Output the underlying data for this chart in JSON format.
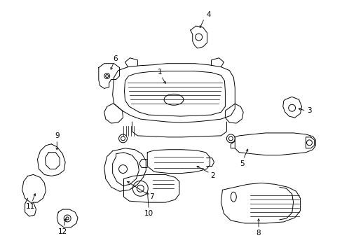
{
  "background_color": "#ffffff",
  "line_color": "#000000",
  "figsize": [
    4.89,
    3.6
  ],
  "dpi": 100,
  "label_positions": {
    "1": [
      228,
      108,
      238,
      122
    ],
    "2": [
      296,
      248,
      278,
      240
    ],
    "3": [
      438,
      160,
      422,
      158
    ],
    "4": [
      296,
      22,
      288,
      38
    ],
    "5": [
      352,
      228,
      362,
      218
    ],
    "6": [
      162,
      88,
      170,
      102
    ],
    "7": [
      258,
      278,
      248,
      268
    ],
    "8": [
      370,
      330,
      370,
      316
    ],
    "9": [
      82,
      198,
      88,
      212
    ],
    "10": [
      208,
      302,
      218,
      290
    ],
    "11": [
      52,
      288,
      60,
      276
    ],
    "12": [
      92,
      320,
      96,
      308
    ]
  }
}
